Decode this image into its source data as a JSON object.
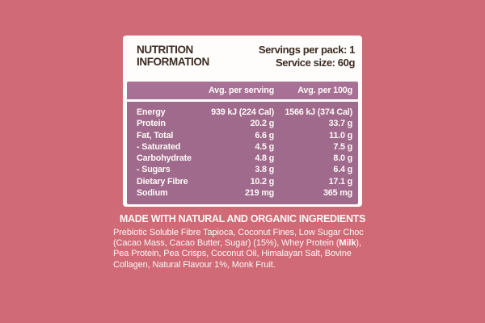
{
  "colors": {
    "background": "#cf6a76",
    "card_background": "#fefdfb",
    "table_header_background": "#a87095",
    "table_body_background": "#a06a8d",
    "header_text": "#3c2b22",
    "light_text": "#fdf8f6"
  },
  "label": {
    "title": "NUTRITION INFORMATION",
    "servings_per_pack": "Servings per pack: 1",
    "service_size": "Service size: 60g"
  },
  "table": {
    "columns": [
      "Avg. per serving",
      "Avg. per 100g"
    ],
    "rows": [
      {
        "label": "Energy",
        "serving": "939 kJ (224 Cal)",
        "per100": "1566 kJ (374 Cal)"
      },
      {
        "label": "Protein",
        "serving": "20.2 g",
        "per100": "33.7 g"
      },
      {
        "label": "Fat, Total",
        "serving": "6.6 g",
        "per100": "11.0 g"
      },
      {
        "label": "- Saturated",
        "serving": "4.5 g",
        "per100": "7.5 g"
      },
      {
        "label": "Carbohydrate",
        "serving": "4.8 g",
        "per100": "8.0 g"
      },
      {
        "label": "- Sugars",
        "serving": "3.8 g",
        "per100": "6.4 g"
      },
      {
        "label": "Dietary Fibre",
        "serving": "10.2 g",
        "per100": "17.1 g"
      },
      {
        "label": "Sodium",
        "serving": "219 mg",
        "per100": "365 mg"
      }
    ]
  },
  "footer": {
    "heading": "MADE WITH NATURAL AND ORGANIC INGREDIENTS",
    "ingredients_part1": "Prebiotic Soluble Fibre Tapioca, Coconut Fines, Low Sugar Choc (Cacao Mass, Cacao Butter, Sugar) (15%), Whey Protein (",
    "ingredients_bold": "Milk",
    "ingredients_part2": "), Pea Protein, Pea Crisps, Coconut Oil, Himalayan Salt, Bovine Collagen, Natural Flavour 1%, Monk Fruit."
  }
}
